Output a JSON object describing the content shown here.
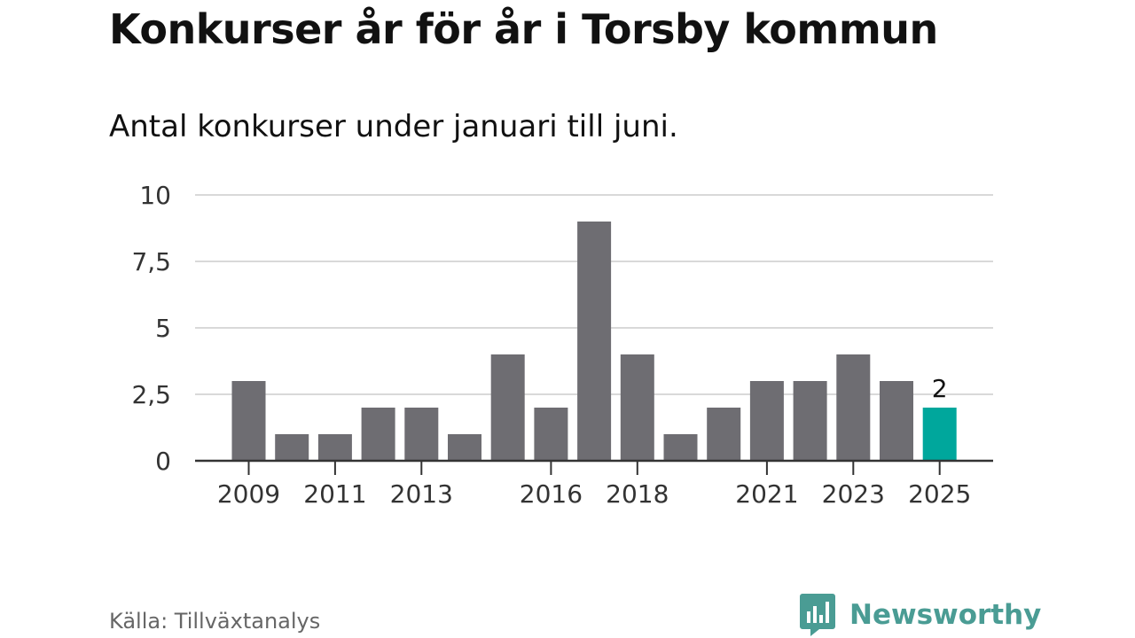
{
  "header": {
    "title": "Konkurser år för år i Torsby kommun",
    "subtitle": "Antal konkurser under januari till juni."
  },
  "footer": {
    "source": "Källa: Tillväxtanalys",
    "brand": "Newsworthy"
  },
  "colors": {
    "bar": "#6e6d72",
    "highlight": "#00a79c",
    "grid": "#d9d9d9",
    "axis": "#333333",
    "brand": "#4a9c94"
  },
  "icons": {
    "brand_logo": "newsworthy-logo-icon"
  },
  "chart_data": {
    "type": "bar",
    "categories": [
      "2009",
      "2010",
      "2011",
      "2012",
      "2013",
      "2014",
      "2015",
      "2016",
      "2017",
      "2018",
      "2019",
      "2020",
      "2021",
      "2022",
      "2023",
      "2024",
      "2025"
    ],
    "values": [
      3,
      1,
      1,
      2,
      2,
      1,
      4,
      2,
      9,
      4,
      1,
      2,
      3,
      3,
      4,
      3,
      2
    ],
    "x_tick_labels": [
      "2009",
      "2011",
      "2013",
      "2016",
      "2018",
      "2021",
      "2023",
      "2025"
    ],
    "y_ticks": [
      0,
      2.5,
      5,
      7.5,
      10
    ],
    "y_tick_labels": [
      "0",
      "2,5",
      "5",
      "7,5",
      "10"
    ],
    "ylim": [
      0,
      10
    ],
    "highlight_category": "2025",
    "data_labels": [
      {
        "category": "2025",
        "text": "2"
      }
    ],
    "grid": true,
    "legend": "none",
    "xlabel": "",
    "ylabel": ""
  }
}
